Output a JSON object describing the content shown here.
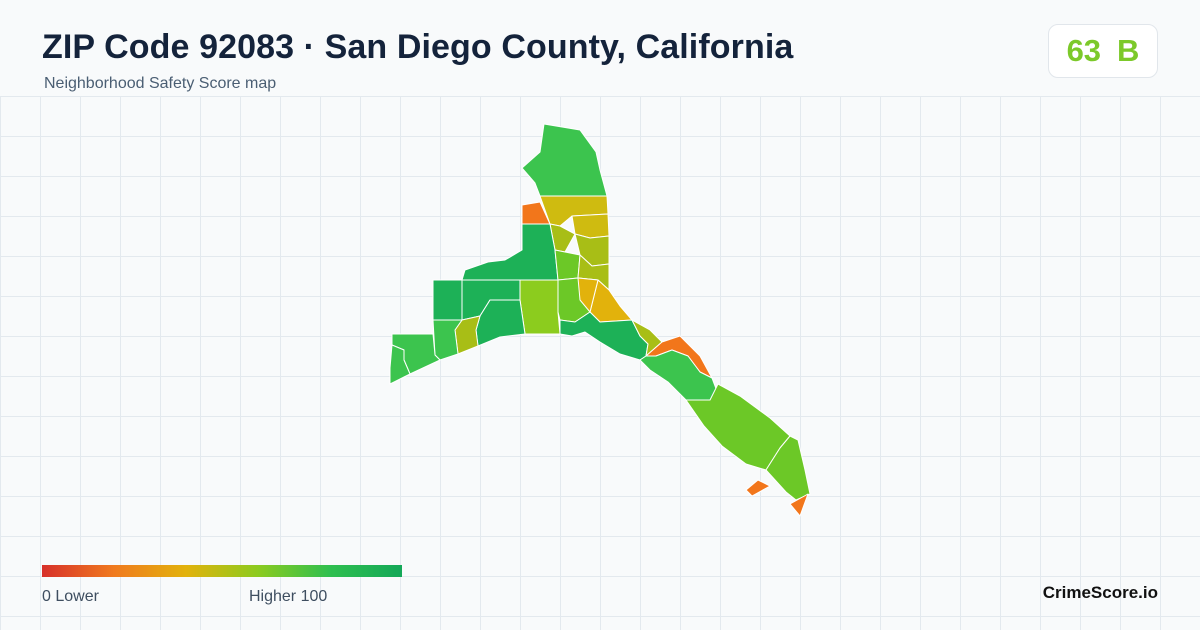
{
  "header": {
    "title": "ZIP Code 92083 · San Diego County, California",
    "subtitle": "Neighborhood Safety Score map"
  },
  "score": {
    "value": "63",
    "grade": "B",
    "color": "#7cc92a"
  },
  "legend": {
    "min_label": "0  Lower",
    "max_label": "Higher  100",
    "gradient": [
      "#d7302a",
      "#f07a1f",
      "#e2b20c",
      "#8ccb1f",
      "#2fbf4f",
      "#14a858"
    ]
  },
  "brand": "CrimeScore.io",
  "map_colors": {
    "dark_green": "#1db157",
    "green": "#3cc44e",
    "yellow_green": "#8ccc1e",
    "lime": "#6cc827",
    "olive": "#a8be16",
    "mustard": "#cfbb10",
    "gold": "#e2b20c",
    "orange": "#f2761b"
  }
}
